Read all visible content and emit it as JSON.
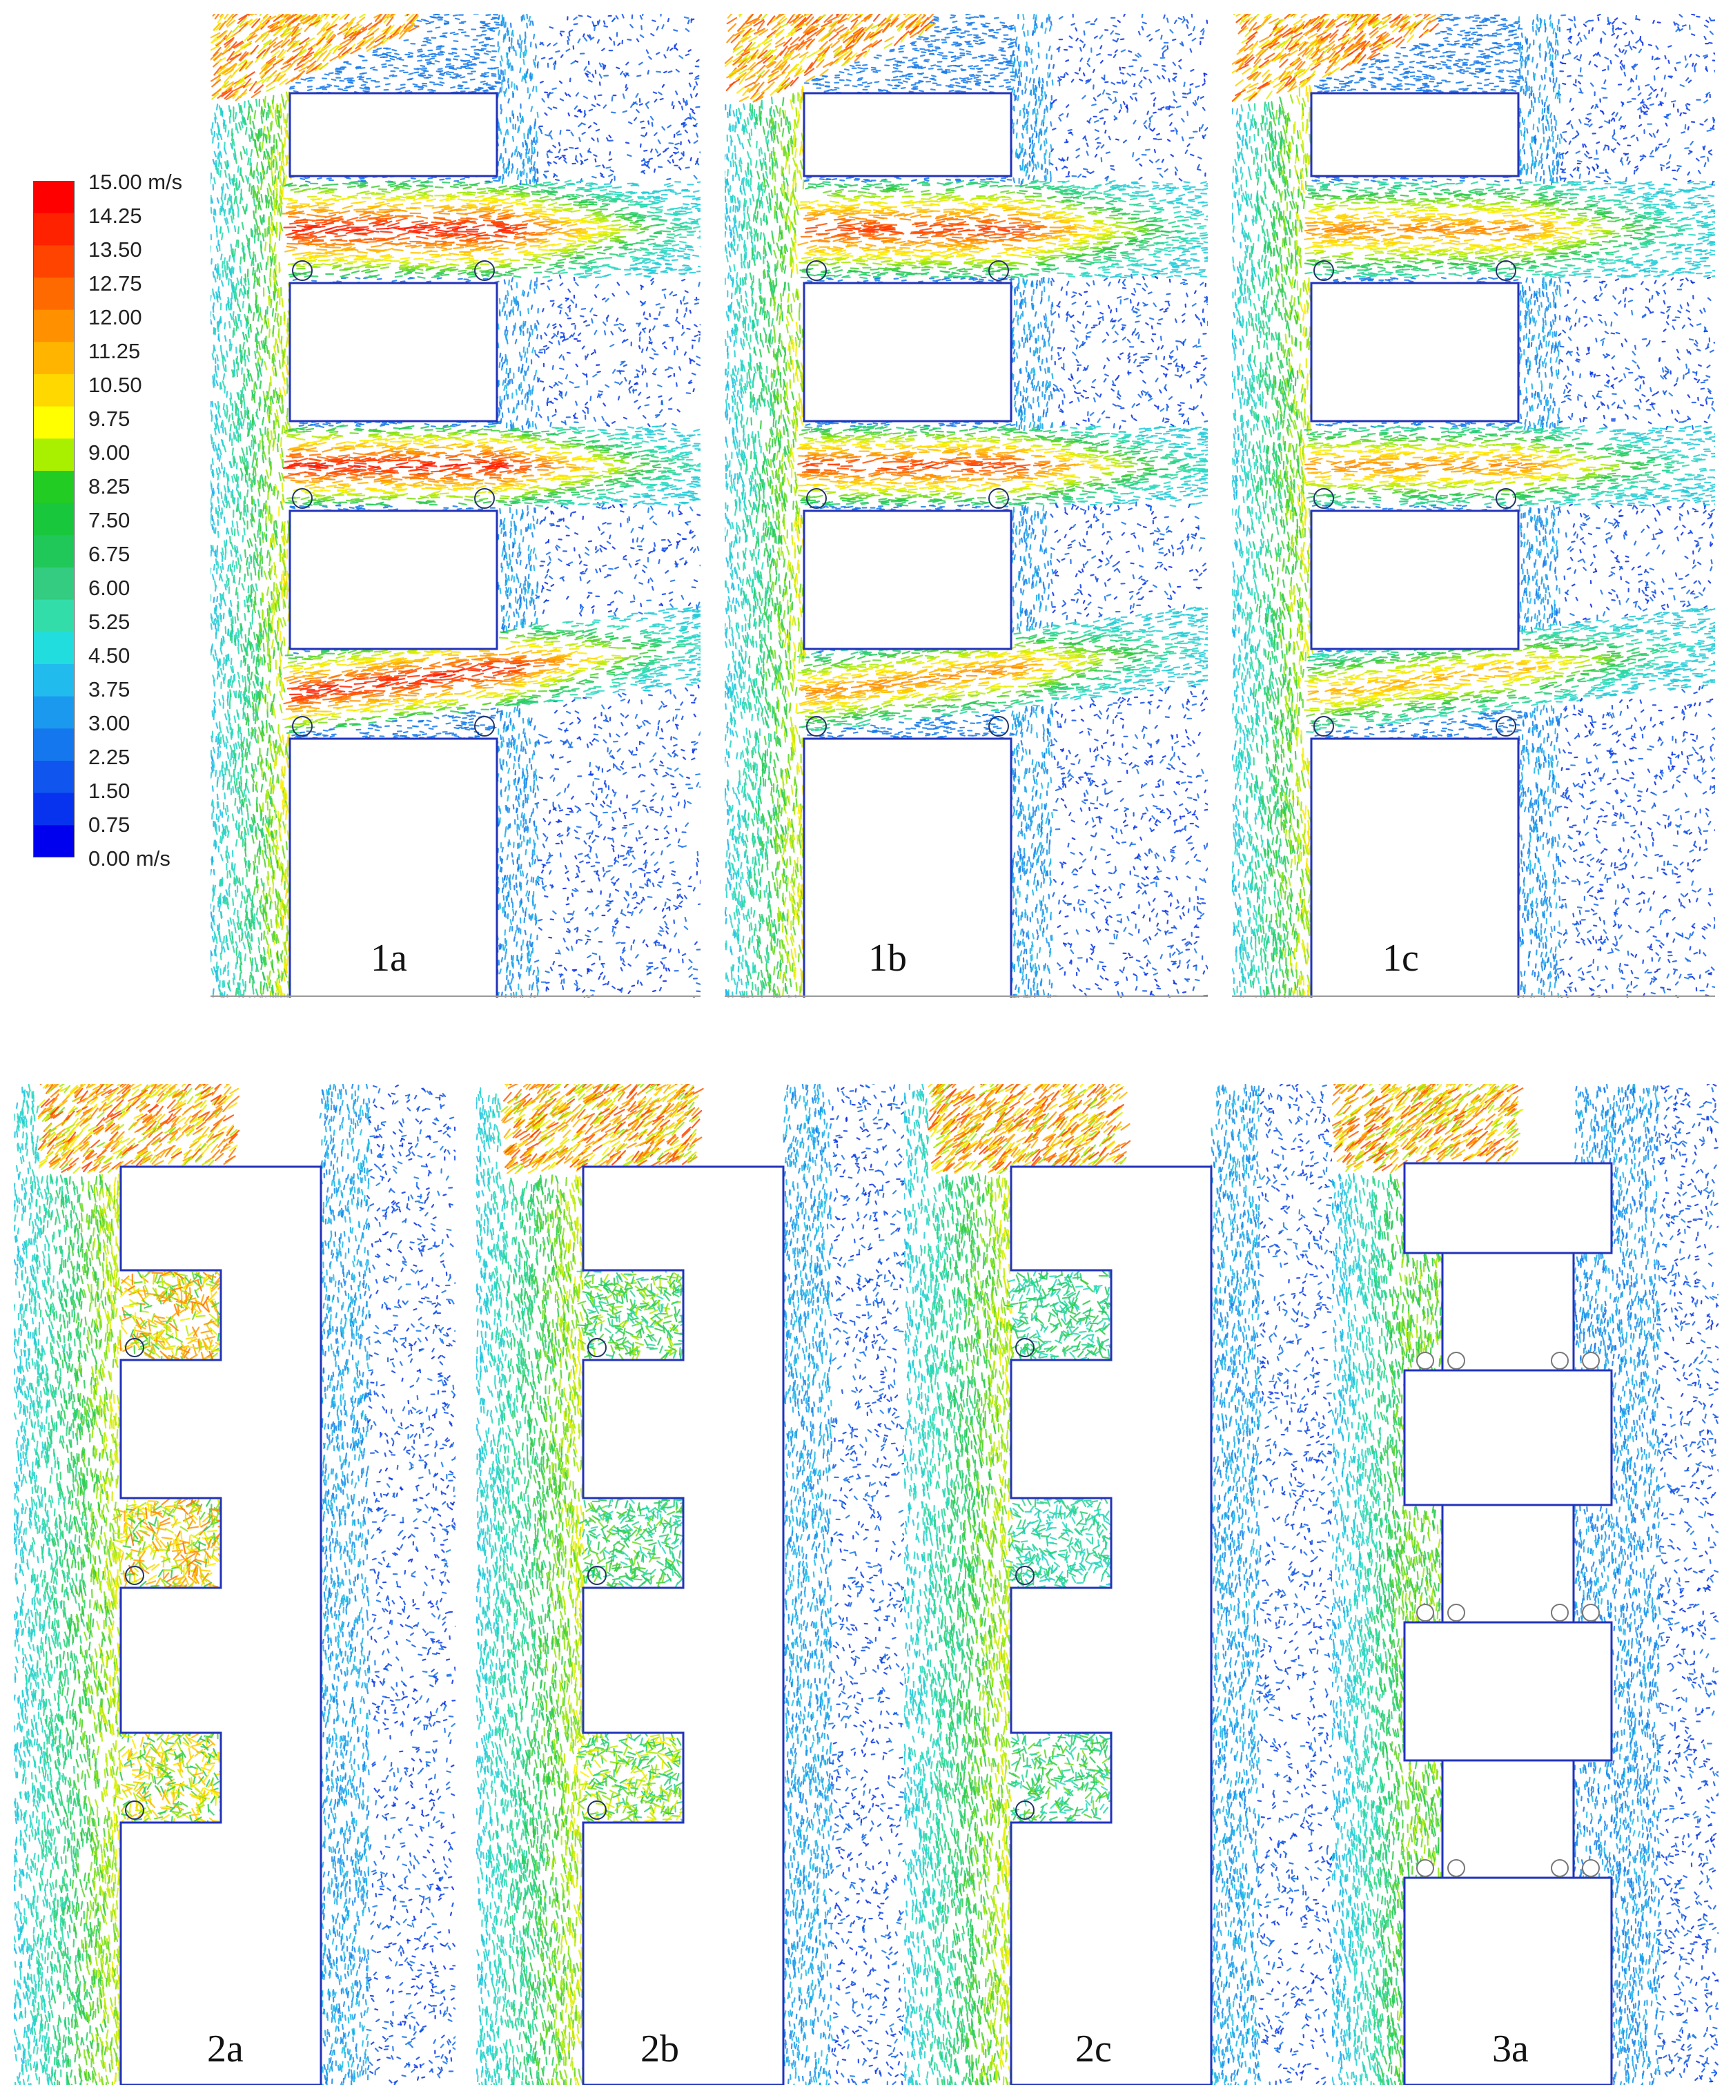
{
  "legend": {
    "ticks": [
      "15.00 m/s",
      "14.25",
      "13.50",
      "12.75",
      "12.00",
      "11.25",
      "10.50",
      "9.75",
      "9.00",
      "8.25",
      "7.50",
      "6.75",
      "6.00",
      "5.25",
      "4.50",
      "3.75",
      "3.00",
      "2.25",
      "1.50",
      "0.75",
      "0.00 m/s"
    ],
    "colors": [
      "#ff0000",
      "#ff2200",
      "#ff4400",
      "#ff6a00",
      "#ff9000",
      "#ffb400",
      "#ffd800",
      "#ffff00",
      "#a8f000",
      "#22cc22",
      "#19c73c",
      "#20c85a",
      "#33cc80",
      "#33ddaa",
      "#22dddd",
      "#22bbee",
      "#1a99ee",
      "#1577ee",
      "#0f55ee",
      "#0833ee",
      "#0000ee"
    ]
  },
  "panels": [
    {
      "id": "1a",
      "label": "1a",
      "type": "stacked",
      "intensity": [
        1.0,
        1.0,
        1.0
      ],
      "bend": [
        0,
        0,
        1
      ]
    },
    {
      "id": "1b",
      "label": "1b",
      "type": "stacked",
      "intensity": [
        0.95,
        0.95,
        0.85
      ],
      "bend": [
        0,
        0,
        1
      ]
    },
    {
      "id": "1c",
      "label": "1c",
      "type": "stacked",
      "intensity": [
        0.85,
        0.85,
        0.8
      ],
      "bend": [
        0,
        0,
        1
      ]
    },
    {
      "id": "2a",
      "label": "2a",
      "type": "side-bay",
      "intensity": [
        0.7,
        0.7,
        0.6
      ]
    },
    {
      "id": "2b",
      "label": "2b",
      "type": "side-bay",
      "intensity": [
        0.45,
        0.4,
        0.5
      ]
    },
    {
      "id": "2c",
      "label": "2c",
      "type": "side-bay",
      "intensity": [
        0.35,
        0.3,
        0.4
      ]
    },
    {
      "id": "3a",
      "label": "3a",
      "type": "setback",
      "intensity": [
        0.3,
        0.3,
        0.35
      ]
    }
  ]
}
